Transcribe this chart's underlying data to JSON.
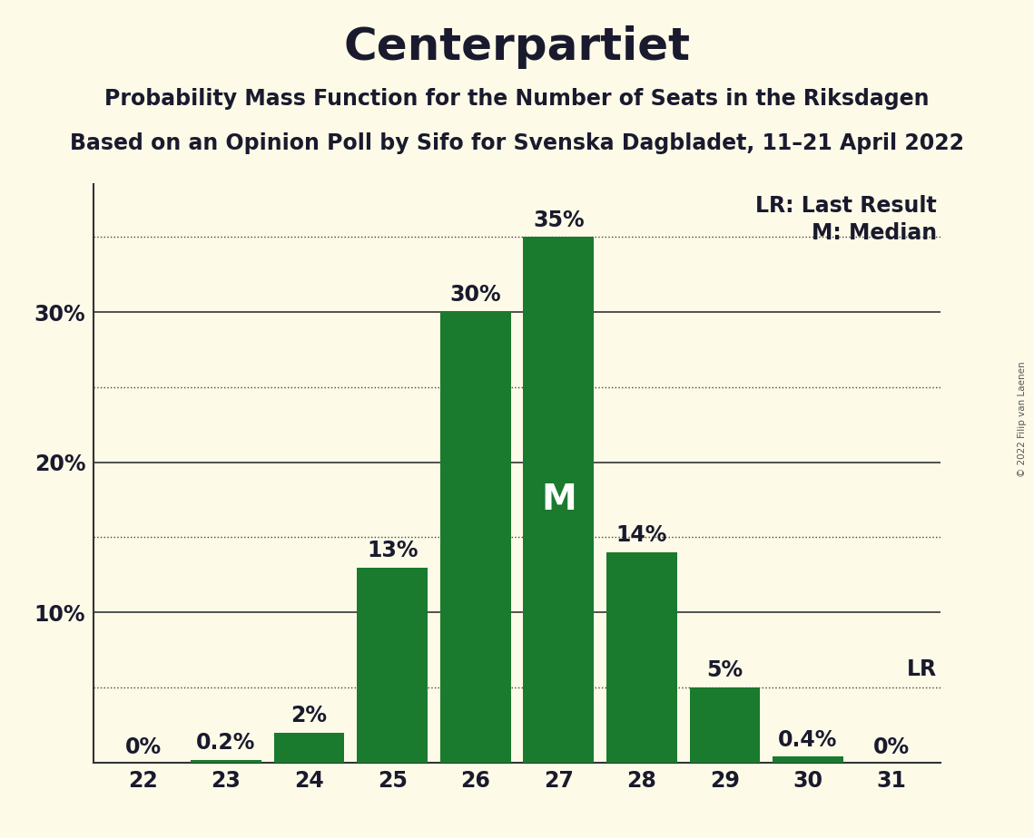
{
  "title": "Centerpartiet",
  "subtitle1": "Probability Mass Function for the Number of Seats in the Riksdagen",
  "subtitle2": "Based on an Opinion Poll by Sifo for Svenska Dagbladet, 11–21 April 2022",
  "copyright": "© 2022 Filip van Laenen",
  "seats": [
    22,
    23,
    24,
    25,
    26,
    27,
    28,
    29,
    30,
    31
  ],
  "values": [
    0.0,
    0.2,
    2.0,
    13.0,
    30.0,
    35.0,
    14.0,
    5.0,
    0.4,
    0.0
  ],
  "bar_color": "#1a7a2e",
  "bar_labels": [
    "0%",
    "0.2%",
    "2%",
    "13%",
    "30%",
    "35%",
    "14%",
    "5%",
    "0.4%",
    "0%"
  ],
  "median_seat": 27,
  "lr_seat": 31,
  "background_color": "#fdfae8",
  "ylabel_ticks": [
    10,
    20,
    30
  ],
  "dotted_lines": [
    5,
    15,
    25,
    35
  ],
  "solid_lines": [
    10,
    20,
    30
  ],
  "title_fontsize": 36,
  "subtitle_fontsize": 17,
  "bar_label_fontsize": 17,
  "axis_label_fontsize": 17,
  "annotation_fontsize": 17,
  "median_label_fontsize": 28,
  "ylim_max": 38.5
}
